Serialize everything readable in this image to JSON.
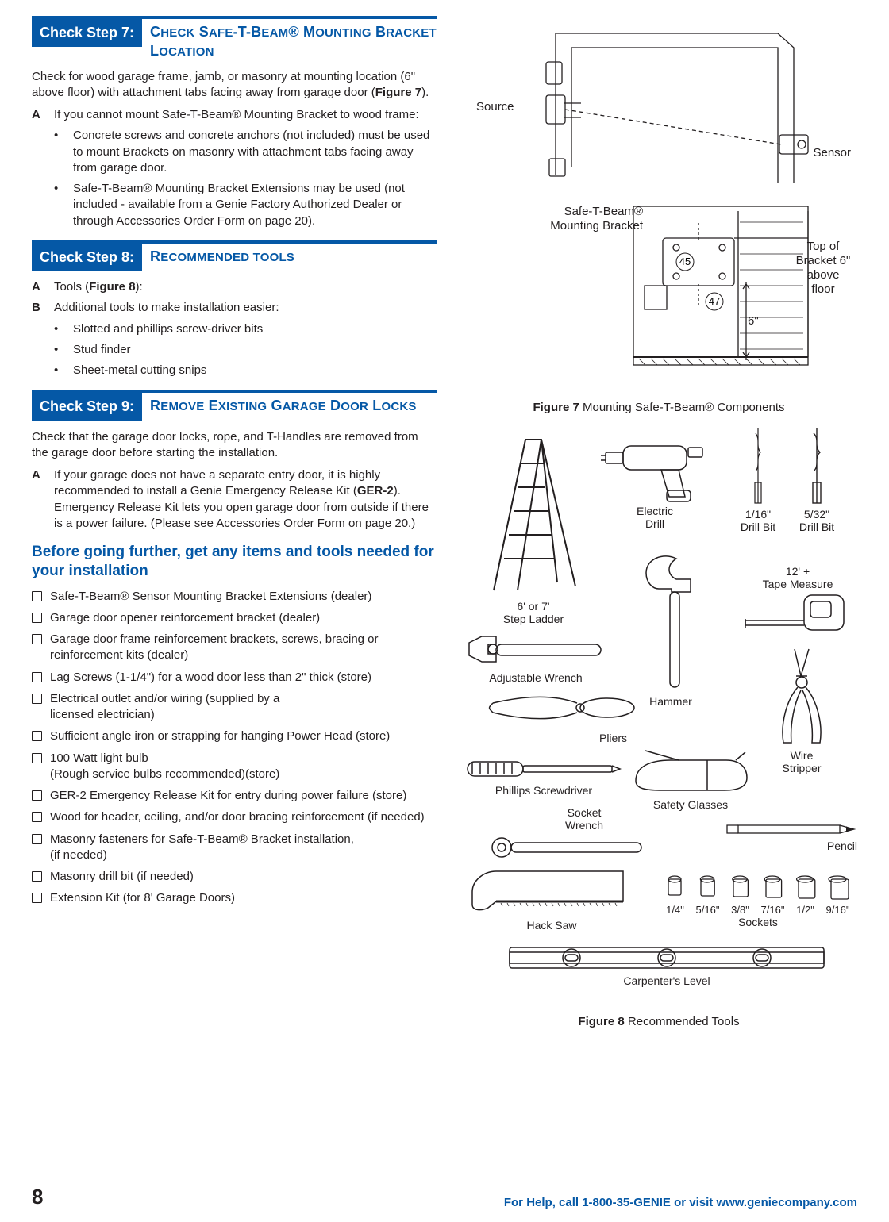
{
  "step7": {
    "badge": "Check Step 7:",
    "title_html": "C<small>HECK</small> S<small>AFE</small>-T-B<small>EAM</small>® M<small>OUNTING</small> B<small>RACKET</small> L<small>OCATION</small>",
    "intro_html": "Check for wood garage frame, jamb, or masonry at mounting location (6\" above floor) with attachment tabs facing away from garage door (<strong>Figure 7</strong>).",
    "A_lead": "If you cannot mount Safe-T-Beam® Mounting Bracket to wood frame:",
    "A_bullets": [
      "Concrete screws and concrete anchors (not included) must be used to mount Brackets on masonry with attachment tabs facing away from garage door.",
      "Safe-T-Beam® Mounting Bracket Extensions may be used (not included - available from a Genie Factory Authorized Dealer or through Accessories Order Form on page 20)."
    ]
  },
  "step8": {
    "badge": "Check Step 8:",
    "title_html": "R<small>ECOMMENDED TOOLS</small>",
    "A_html": "Tools (<strong>Figure 8</strong>):",
    "B_lead": "Additional tools to make installation easier:",
    "B_bullets": [
      "Slotted and phillips screw-driver bits",
      "Stud finder",
      "Sheet-metal cutting snips"
    ]
  },
  "step9": {
    "badge": "Check Step 9:",
    "title_html": "R<small>EMOVE</small> E<small>XISTING</small> G<small>ARAGE</small> D<small>OOR</small> L<small>OCKS</small>",
    "intro": "Check that the garage door locks, rope, and T-Handles are removed from the garage door before starting the installation.",
    "A_html": "If your garage does not have a separate entry door, it is highly recommended to install a Genie Emergency Release Kit (<strong>GER-2</strong>). Emergency Release Kit lets you open garage door from outside if there is a power failure.  (Please see Accessories Order Form on page 20.)",
    "subhead": "Before going further, get any items and tools needed for your installation",
    "checklist": [
      "Safe-T-Beam® Sensor Mounting Bracket  Extensions (dealer)",
      "Garage door opener reinforcement bracket (dealer)",
      "Garage door frame reinforcement brackets, screws, bracing or reinforcement kits (dealer)",
      "Lag Screws (1-1/4\") for a wood door less than 2\" thick (store)",
      "Electrical outlet and/or wiring (supplied by a\nlicensed electrician)",
      "Sufficient angle iron or strapping for hanging Power Head (store)",
      "100 Watt light bulb\n(Rough service bulbs recommended)(store)",
      "GER-2 Emergency Release Kit for entry during power failure (store)",
      "Wood for header, ceiling, and/or door bracing reinforcement (if needed)",
      "Masonry fasteners for Safe-T-Beam® Bracket installation,\n(if needed)",
      "Masonry drill bit (if needed)",
      "Extension Kit (for 8' Garage Doors)"
    ]
  },
  "fig7": {
    "source": "Source",
    "sensor": "Sensor",
    "bracket": "Safe-T-Beam®\nMounting Bracket",
    "top": "Top of\nBracket 6\"\nabove\nfloor",
    "six": "6\"",
    "c45": "45",
    "c47": "47",
    "caption_html": "<strong>Figure 7</strong>  Mounting Safe-T-Beam® Components"
  },
  "fig8": {
    "ladder": "6' or 7'\nStep Ladder",
    "drill": "Electric\nDrill",
    "bit1": "1/16\"\nDrill Bit",
    "bit2": "5/32\"\nDrill Bit",
    "tape": "12' +\nTape Measure",
    "wrench": "Adjustable Wrench",
    "pliers": "Pliers",
    "hammer": "Hammer",
    "stripper": "Wire\nStripper",
    "phillips": "Phillips Screwdriver",
    "glasses": "Safety Glasses",
    "socketw": "Socket\nWrench",
    "pencil": "Pencil",
    "hacksaw": "Hack Saw",
    "sockets_label": "Sockets",
    "sockets": [
      "1/4\"",
      "5/16\"",
      "3/8\"",
      "7/16\"",
      "1/2\"",
      "9/16\""
    ],
    "level": "Carpenter's Level",
    "caption_html": "<strong>Figure 8</strong>  Recommended Tools"
  },
  "footer": {
    "page": "8",
    "help": "For Help, call 1-800-35-GENIE or visit www.geniecompany.com"
  }
}
